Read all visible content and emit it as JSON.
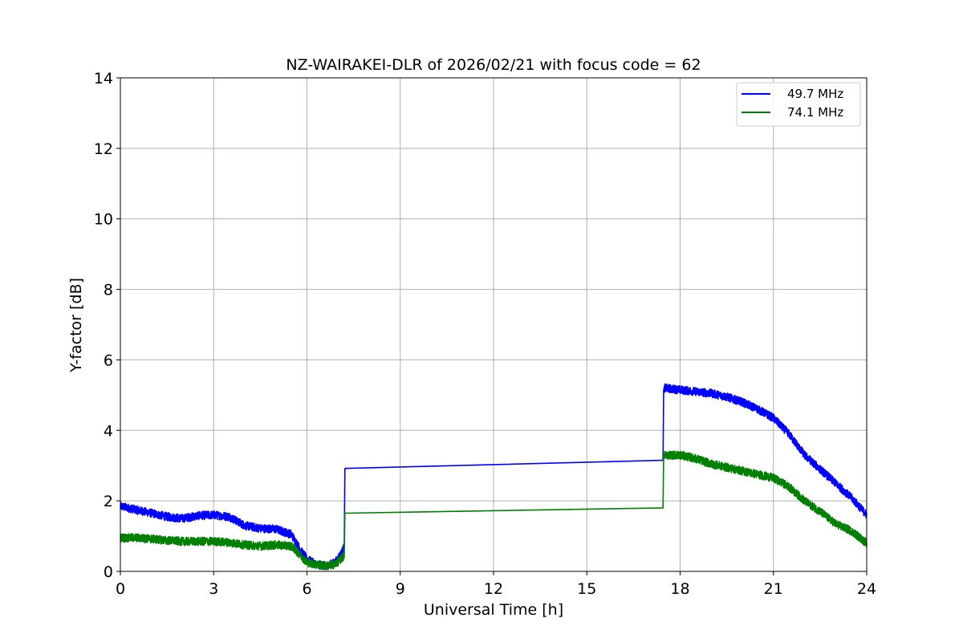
{
  "chart_data": {
    "type": "line",
    "title": "NZ-WAIRAKEI-DLR of 2026/02/21 with focus code = 62",
    "xlabel": "Universal Time [h]",
    "ylabel": "Y-factor [dB]",
    "xlim": [
      0,
      24
    ],
    "ylim": [
      0,
      14
    ],
    "xticks": [
      0,
      3,
      6,
      9,
      12,
      15,
      18,
      21,
      24
    ],
    "yticks": [
      0,
      2,
      4,
      6,
      8,
      10,
      12,
      14
    ],
    "grid": true,
    "legend_position": "top-right",
    "series": [
      {
        "name": "49.7 MHz",
        "color": "#0000ff",
        "noise": 0.12,
        "x": [
          0,
          0.5,
          1,
          1.5,
          2,
          2.5,
          3,
          3.5,
          4,
          4.5,
          5,
          5.5,
          5.8,
          6,
          6.3,
          6.6,
          6.9,
          7.1,
          7.2,
          7.22,
          17.45,
          17.47,
          17.5,
          18,
          18.5,
          19,
          19.5,
          20,
          20.5,
          21,
          21.5,
          22,
          22.5,
          23,
          23.5,
          24
        ],
        "y": [
          1.85,
          1.75,
          1.65,
          1.55,
          1.5,
          1.58,
          1.6,
          1.55,
          1.3,
          1.22,
          1.2,
          1.05,
          0.6,
          0.35,
          0.2,
          0.15,
          0.25,
          0.5,
          0.7,
          2.92,
          3.15,
          5.15,
          5.2,
          5.15,
          5.1,
          5.05,
          4.95,
          4.8,
          4.6,
          4.35,
          3.9,
          3.3,
          2.9,
          2.5,
          2.1,
          1.6
        ]
      },
      {
        "name": "74.1 MHz",
        "color": "#008000",
        "noise": 0.12,
        "x": [
          0,
          0.5,
          1,
          1.5,
          2,
          2.5,
          3,
          3.5,
          4,
          4.5,
          5,
          5.5,
          5.8,
          6,
          6.3,
          6.6,
          6.9,
          7.1,
          7.2,
          7.22,
          17.45,
          17.47,
          17.5,
          18,
          18.5,
          19,
          19.5,
          20,
          20.5,
          21,
          21.5,
          22,
          22.5,
          23,
          23.5,
          24
        ],
        "y": [
          0.95,
          0.95,
          0.92,
          0.88,
          0.85,
          0.85,
          0.85,
          0.82,
          0.75,
          0.72,
          0.75,
          0.72,
          0.45,
          0.25,
          0.2,
          0.15,
          0.2,
          0.35,
          0.45,
          1.65,
          1.8,
          3.3,
          3.3,
          3.3,
          3.2,
          3.05,
          2.95,
          2.85,
          2.75,
          2.65,
          2.4,
          2.0,
          1.7,
          1.35,
          1.15,
          0.8
        ]
      }
    ]
  }
}
